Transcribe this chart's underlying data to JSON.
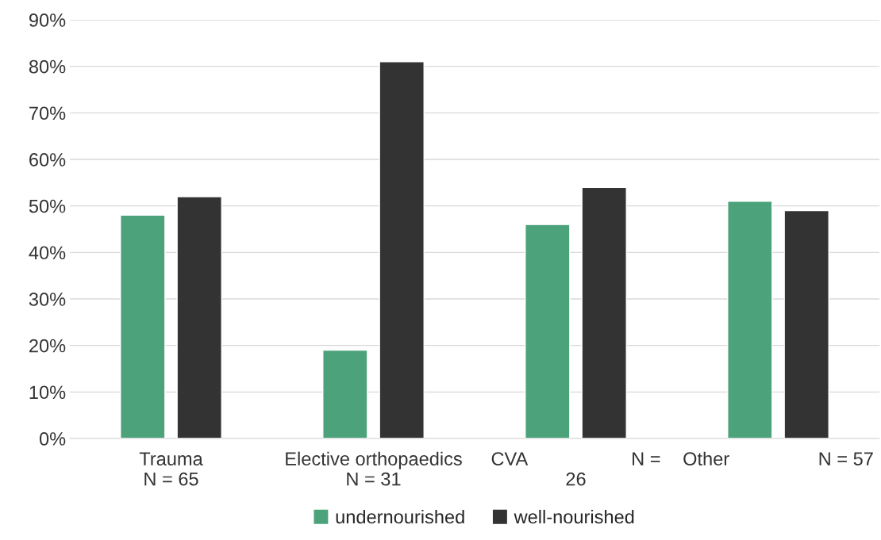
{
  "chart_data": {
    "type": "bar",
    "categories": [
      "Trauma\nN = 65",
      "Elective orthopaedics\nN = 31",
      "CVA                    N =\n26",
      "Other                 N = 57"
    ],
    "series": [
      {
        "name": "undernourished",
        "color": "#4ca27b",
        "values": [
          48,
          19,
          46,
          51
        ]
      },
      {
        "name": "well-nourished",
        "color": "#333333",
        "values": [
          52,
          81,
          54,
          49
        ]
      }
    ],
    "ylim": [
      0,
      90
    ],
    "yticks": [
      {
        "value": 0,
        "label": "0%"
      },
      {
        "value": 10,
        "label": "10%"
      },
      {
        "value": 20,
        "label": "20%"
      },
      {
        "value": 30,
        "label": "30%"
      },
      {
        "value": 40,
        "label": "40%"
      },
      {
        "value": 50,
        "label": "50%"
      },
      {
        "value": 60,
        "label": "60%"
      },
      {
        "value": 70,
        "label": "70%"
      },
      {
        "value": 80,
        "label": "80%"
      },
      {
        "value": 90,
        "label": "90%"
      }
    ],
    "grid": "y",
    "legend": "bottom"
  }
}
